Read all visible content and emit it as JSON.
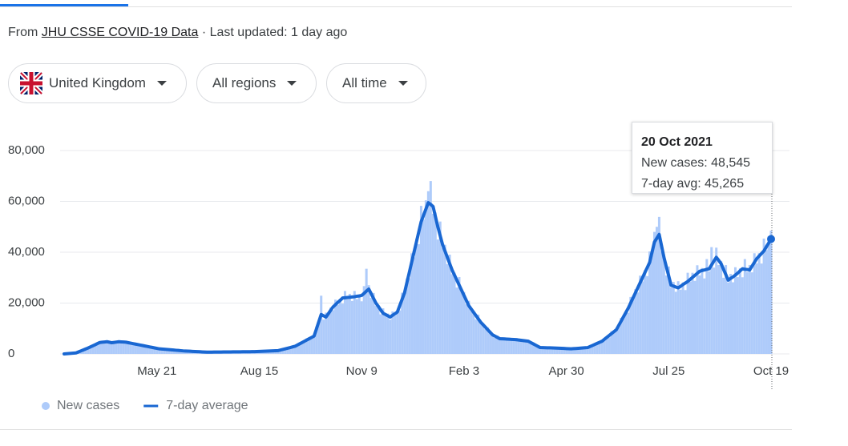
{
  "header": {
    "source_prefix": "From",
    "source_link": "JHU CSSE COVID-19 Data",
    "updated": "· Last updated: 1 day ago"
  },
  "filters": [
    "United Kingdom",
    "All regions",
    "All time"
  ],
  "tooltip": {
    "date": "20 Oct 2021",
    "lines": [
      "New cases: 48,545",
      "7-day avg: 45,265"
    ]
  },
  "chart_data": {
    "type": "bar",
    "grid": true,
    "ylim": [
      0,
      80000
    ],
    "yticks": [
      0,
      {
        "value": 20000,
        "label": "20,000"
      },
      {
        "value": 40000,
        "label": "40,000"
      },
      {
        "value": 60000,
        "label": "60,000"
      },
      {
        "value": 80000,
        "label": "80,000"
      }
    ],
    "categories": [
      null,
      null,
      null,
      null,
      null,
      null,
      null,
      null,
      null,
      null,
      null,
      null,
      null,
      null,
      null,
      null,
      null,
      null,
      null,
      null,
      null,
      null,
      null,
      null,
      null,
      null,
      null,
      null,
      null,
      null,
      null,
      null,
      null,
      null,
      null,
      null,
      null,
      null,
      null,
      "May 21",
      null,
      null,
      null,
      null,
      null,
      null,
      null,
      null,
      null,
      null,
      null,
      null,
      null,
      null,
      null,
      null,
      null,
      null,
      null,
      null,
      null,
      null,
      null,
      null,
      null,
      null,
      null,
      null,
      null,
      null,
      null,
      null,
      null,
      null,
      null,
      null,
      null,
      null,
      null,
      null,
      null,
      null,
      "Aug 15",
      null,
      null,
      null,
      null,
      null,
      null,
      null,
      null,
      null,
      null,
      null,
      null,
      null,
      null,
      null,
      null,
      null,
      null,
      null,
      null,
      null,
      null,
      null,
      null,
      null,
      null,
      null,
      null,
      null,
      null,
      null,
      null,
      null,
      null,
      null,
      null,
      null,
      null,
      null,
      null,
      null,
      null,
      "Nov 9",
      null,
      null,
      null,
      null,
      null,
      null,
      null,
      null,
      null,
      null,
      null,
      null,
      null,
      null,
      null,
      null,
      null,
      null,
      null,
      null,
      null,
      null,
      null,
      null,
      null,
      null,
      null,
      null,
      null,
      null,
      null,
      null,
      null,
      null,
      null,
      null,
      null,
      null,
      null,
      null,
      null,
      null,
      "Feb 3",
      null,
      null,
      null,
      null,
      null,
      null,
      null,
      null,
      null,
      null,
      null,
      null,
      null,
      null,
      null,
      null,
      null,
      null,
      null,
      null,
      null,
      null,
      null,
      null,
      null,
      null,
      null,
      null,
      null,
      null,
      null,
      null,
      null,
      null,
      null,
      null,
      null,
      null,
      null,
      null,
      null,
      null,
      "Apr 30",
      null,
      null,
      null,
      null,
      null,
      null,
      null,
      null,
      null,
      null,
      null,
      null,
      null,
      null,
      null,
      null,
      null,
      null,
      null,
      null,
      null,
      null,
      null,
      null,
      null,
      null,
      null,
      null,
      null,
      null,
      null,
      null,
      null,
      null,
      null,
      null,
      null,
      null,
      null,
      null,
      null,
      null,
      "Jul 25",
      null,
      null,
      null,
      null,
      null,
      null,
      null,
      null,
      null,
      null,
      null,
      null,
      null,
      null,
      null,
      null,
      null,
      null,
      null,
      null,
      null,
      null,
      null,
      null,
      null,
      null,
      null,
      null,
      null,
      null,
      null,
      null,
      null,
      null,
      null,
      null,
      null,
      null,
      null,
      null,
      null,
      null,
      "Oct 19"
    ],
    "series": [
      {
        "name": "New cases",
        "color": "#aecbfa",
        "values": [
          0,
          70,
          180,
          230,
          330,
          360,
          870,
          1130,
          1630,
          1790,
          2530,
          2600,
          3280,
          3260,
          4550,
          4370,
          4880,
          4370,
          5280,
          4370,
          4530,
          4080,
          5230,
          4660,
          5010,
          4340,
          5060,
          4190,
          4360,
          3640,
          4320,
          3560,
          3700,
          3070,
          3420,
          2780,
          2820,
          2300,
          2650,
          2120,
          2120,
          1790,
          2020,
          1670,
          1730,
          1440,
          1700,
          1400,
          1440,
          1190,
          1320,
          1090,
          1130,
          950,
          1120,
          920,
          950,
          790,
          880,
          710,
          720,
          640,
          810,
          710,
          780,
          700,
          840,
          730,
          800,
          710,
          900,
          790,
          870,
          770,
          920,
          810,
          890,
          780,
          990,
          860,
          950,
          870,
          1080,
          970,
          1090,
          990,
          1280,
          1140,
          1290,
          1170,
          1430,
          1460,
          1840,
          1830,
          2540,
          2430,
          2930,
          2790,
          3850,
          3800,
          4640,
          4500,
          6160,
          5820,
          6890,
          6510,
          10780,
          12070,
          22900,
          13500,
          16240,
          15330,
          18230,
          17210,
          21340,
          19290,
          21730,
          19800,
          24750,
          21530,
          23640,
          20830,
          24750,
          21570,
          23480,
          20700,
          26660,
          33500,
          27030,
          22040,
          23980,
          19000,
          19260,
          15570,
          17920,
          15040,
          15900,
          13490,
          16720,
          15010,
          17000,
          17100,
          24080,
          23280,
          29680,
          29760,
          39600,
          38000,
          45320,
          43200,
          58240,
          52870,
          60420,
          64000,
          68000,
          55100,
          55620,
          45000,
          52080,
          41710,
          42930,
          35340,
          39050,
          31350,
          31930,
          26100,
          30240,
          24250,
          24380,
          19530,
          20900,
          16820,
          16890,
          13590,
          15460,
          12130,
          12190,
          9770,
          10450,
          8080,
          7730,
          6300,
          7280,
          5820,
          6300,
          5480,
          6410,
          5480,
          5880,
          5090,
          6270,
          5320,
          5680,
          4870,
          5630,
          4750,
          4640,
          3600,
          3920,
          2910,
          2650,
          2300,
          2680,
          2290,
          2460,
          2120,
          2610,
          2230,
          2390,
          2050,
          2370,
          2000,
          2110,
          1800,
          2320,
          2080,
          2340,
          2130,
          2600,
          2310,
          2580,
          2630,
          3730,
          3640,
          4420,
          4260,
          5500,
          5460,
          6700,
          6530,
          8960,
          8490,
          10070,
          10420,
          14190,
          13870,
          16790,
          16200,
          22400,
          21340,
          25440,
          24180,
          30800,
          28500,
          32960,
          30600,
          40320,
          38800,
          48000,
          50000,
          53900,
          40380,
          39140,
          30870,
          34380,
          26190,
          28300,
          24460,
          28600,
          25270,
          28120,
          25110,
          31920,
          28420,
          31910,
          28740,
          34870,
          30880,
          33780,
          29700,
          37300,
          32500,
          42000,
          33950,
          41800,
          34960,
          36570,
          29970,
          34940,
          28130,
          31480,
          28180,
          34100,
          30210,
          33680,
          30150,
          37300,
          32200,
          34980,
          32090,
          39600,
          35630,
          39660,
          35550,
          45360,
          40840,
          46220,
          48500
        ]
      },
      {
        "name": "7-day average",
        "color": "#1967d2",
        "type": "line",
        "values": [
          0,
          80,
          160,
          240,
          320,
          400,
          780,
          1160,
          1540,
          1920,
          2300,
          2740,
          3180,
          3620,
          4060,
          4500,
          4600,
          4700,
          4800,
          4600,
          4400,
          4530,
          4670,
          4800,
          4730,
          4670,
          4600,
          4410,
          4230,
          4040,
          3860,
          3670,
          3490,
          3300,
          3110,
          2930,
          2740,
          2560,
          2370,
          2190,
          2000,
          1920,
          1840,
          1760,
          1680,
          1600,
          1520,
          1440,
          1360,
          1280,
          1200,
          1150,
          1100,
          1050,
          1000,
          950,
          900,
          850,
          800,
          750,
          700,
          710,
          720,
          730,
          740,
          750,
          760,
          770,
          780,
          790,
          800,
          810,
          820,
          830,
          840,
          850,
          860,
          870,
          880,
          890,
          900,
          940,
          980,
          1020,
          1060,
          1100,
          1140,
          1180,
          1220,
          1260,
          1300,
          1540,
          1790,
          2030,
          2270,
          2510,
          2760,
          3000,
          3500,
          4000,
          4500,
          5000,
          5500,
          6000,
          6500,
          7000,
          9800,
          12700,
          15500,
          15000,
          14500,
          15800,
          17200,
          18500,
          19400,
          20300,
          21100,
          22000,
          22100,
          22200,
          22300,
          22400,
          22500,
          22700,
          22800,
          23000,
          23800,
          24700,
          25500,
          23700,
          21800,
          20000,
          18700,
          17300,
          16000,
          15500,
          15000,
          14500,
          15200,
          15800,
          16500,
          19000,
          21500,
          24000,
          28000,
          32000,
          36000,
          40000,
          44000,
          48000,
          52000,
          54500,
          57000,
          59500,
          58800,
          58000,
          54000,
          50000,
          46500,
          43000,
          40500,
          38000,
          35500,
          33000,
          31000,
          29000,
          27000,
          25000,
          23000,
          21000,
          19000,
          17700,
          16400,
          15100,
          13800,
          12500,
          11500,
          10500,
          9500,
          8500,
          7500,
          7000,
          6500,
          6000,
          5940,
          5890,
          5830,
          5770,
          5710,
          5660,
          5600,
          5480,
          5360,
          5240,
          5120,
          5000,
          4500,
          4000,
          3500,
          3000,
          2500,
          2470,
          2440,
          2410,
          2390,
          2360,
          2330,
          2300,
          2250,
          2200,
          2150,
          2100,
          2050,
          2000,
          2070,
          2140,
          2210,
          2290,
          2360,
          2430,
          2500,
          2920,
          3330,
          3750,
          4170,
          4580,
          5000,
          5750,
          6500,
          7250,
          8000,
          8750,
          9500,
          11200,
          12900,
          14600,
          16300,
          18000,
          20000,
          22000,
          24000,
          26000,
          28000,
          30000,
          32000,
          34000,
          36000,
          40000,
          44000,
          45500,
          47000,
          42500,
          38000,
          34300,
          30700,
          27000,
          26700,
          26300,
          26000,
          26600,
          27300,
          27900,
          28500,
          29300,
          30100,
          30900,
          31700,
          32500,
          32800,
          33000,
          33300,
          33500,
          35000,
          36500,
          38000,
          36800,
          35500,
          33300,
          31200,
          29000,
          29700,
          30300,
          31000,
          31800,
          32700,
          33500,
          33300,
          33200,
          33000,
          34500,
          36000,
          37500,
          38500,
          39500,
          40500,
          42100,
          43600,
          45200
        ]
      }
    ]
  }
}
